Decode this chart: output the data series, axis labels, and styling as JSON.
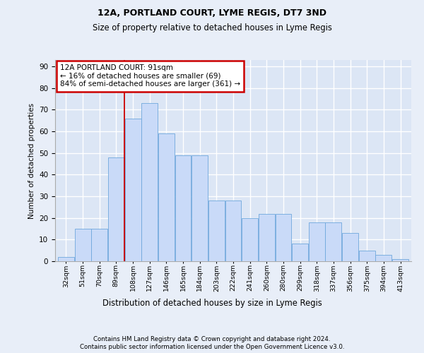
{
  "title1": "12A, PORTLAND COURT, LYME REGIS, DT7 3ND",
  "title2": "Size of property relative to detached houses in Lyme Regis",
  "xlabel": "Distribution of detached houses by size in Lyme Regis",
  "ylabel": "Number of detached properties",
  "bar_values": [
    2,
    15,
    15,
    48,
    66,
    73,
    59,
    49,
    49,
    28,
    28,
    20,
    22,
    22,
    8,
    18,
    18,
    13,
    5,
    3,
    1
  ],
  "xtick_labels": [
    "32sqm",
    "51sqm",
    "70sqm",
    "89sqm",
    "108sqm",
    "127sqm",
    "146sqm",
    "165sqm",
    "184sqm",
    "203sqm",
    "222sqm",
    "241sqm",
    "260sqm",
    "280sqm",
    "299sqm",
    "318sqm",
    "337sqm",
    "356sqm",
    "375sqm",
    "394sqm",
    "413sqm"
  ],
  "bar_color": "#c9daf8",
  "bar_edge_color": "#6fa8dc",
  "property_label": "12A PORTLAND COURT: 91sqm",
  "annotation_line1": "← 16% of detached houses are smaller (69)",
  "annotation_line2": "84% of semi-detached houses are larger (361) →",
  "vline_color": "#cc0000",
  "vline_x": 3.5,
  "ylim": [
    0,
    93
  ],
  "yticks": [
    0,
    10,
    20,
    30,
    40,
    50,
    60,
    70,
    80,
    90
  ],
  "bg_color": "#dce6f5",
  "fig_bg_color": "#e8eef8",
  "grid_color": "#ffffff",
  "footer1": "Contains HM Land Registry data © Crown copyright and database right 2024.",
  "footer2": "Contains public sector information licensed under the Open Government Licence v3.0."
}
